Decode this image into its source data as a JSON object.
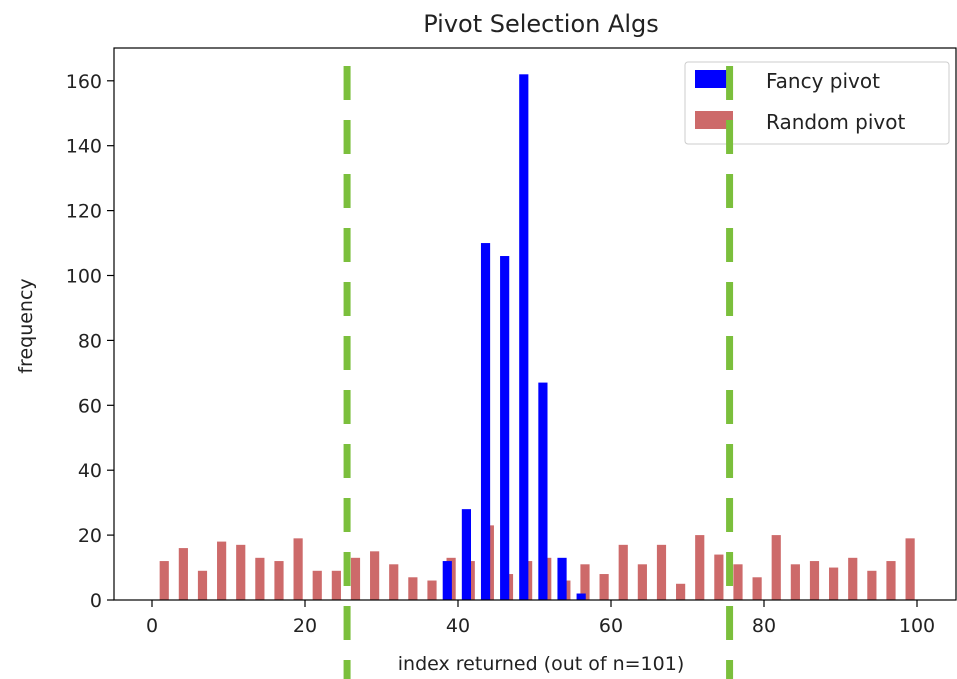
{
  "chart_data": {
    "type": "bar",
    "title": "Pivot Selection Algs",
    "xlabel": "index returned (out of n=101)",
    "ylabel": "frequency",
    "xlim": [
      -5,
      105
    ],
    "ylim": [
      0,
      170
    ],
    "xticks": [
      0,
      20,
      40,
      60,
      80,
      100
    ],
    "yticks": [
      0,
      20,
      40,
      60,
      80,
      100,
      120,
      140,
      160
    ],
    "grid": false,
    "legend_position": "top-right",
    "series": [
      {
        "name": "Fancy pivot",
        "color": "#0000ff",
        "x": [
          38.6,
          41.1,
          43.6,
          46.1,
          48.6,
          51.1,
          53.6,
          56.1
        ],
        "values": [
          12,
          28,
          110,
          106,
          162,
          67,
          13,
          2
        ]
      },
      {
        "name": "Random pivot",
        "color": "#cd6a6a",
        "x": [
          1.6,
          4.1,
          6.6,
          9.1,
          11.6,
          14.1,
          16.6,
          19.1,
          21.6,
          24.1,
          26.6,
          29.1,
          31.6,
          34.1,
          36.6,
          39.1,
          41.6,
          44.1,
          46.6,
          49.1,
          51.6,
          54.1,
          56.6,
          59.1,
          61.6,
          64.1,
          66.6,
          69.1,
          71.6,
          74.1,
          76.6,
          79.1,
          81.6,
          84.1,
          86.6,
          89.1,
          91.6,
          94.1,
          96.6,
          99.1
        ],
        "values": [
          12,
          16,
          9,
          18,
          17,
          13,
          12,
          19,
          9,
          9,
          13,
          15,
          11,
          7,
          6,
          13,
          12,
          23,
          8,
          12,
          13,
          6,
          11,
          8,
          17,
          11,
          17,
          5,
          20,
          14,
          11,
          7,
          20,
          11,
          12,
          10,
          13,
          9,
          12,
          19
        ]
      }
    ],
    "annotations": {
      "vertical_lines": [
        {
          "x": 25.5,
          "style": "dashed",
          "color": "#7bbf3c"
        },
        {
          "x": 75.5,
          "style": "dashed",
          "color": "#7bbf3c"
        }
      ]
    }
  }
}
